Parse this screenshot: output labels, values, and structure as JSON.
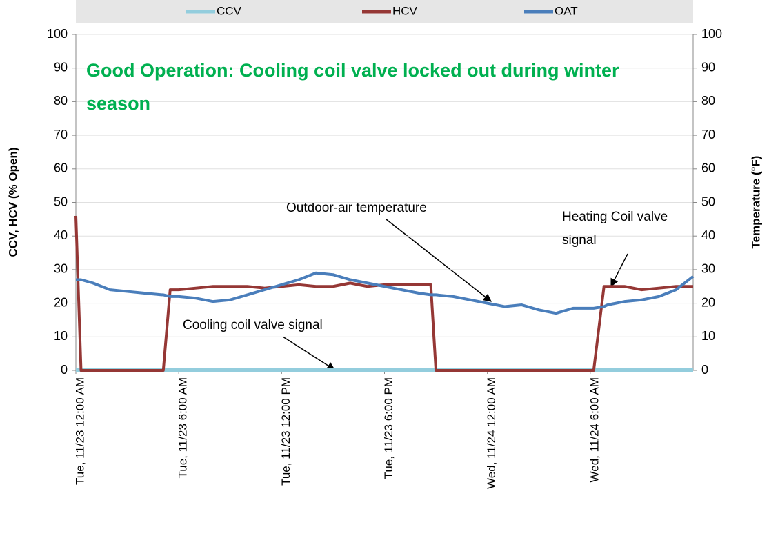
{
  "chart_data": {
    "type": "line",
    "title": "Good Operation: Cooling coil valve locked out during winter season",
    "y_label": "CCV, HCV (% Open)",
    "y2_label": "Temperature (°F)",
    "annotations": [
      "Outdoor-air temperature",
      "Heating Coil valve signal",
      "Cooling coil valve signal"
    ],
    "x": [
      0,
      0.3,
      1,
      2,
      3,
      4,
      5,
      5.1,
      5.5,
      6,
      7,
      8,
      9,
      10,
      11,
      12,
      13,
      14,
      15,
      16,
      17,
      18,
      19,
      20,
      20.7,
      21,
      22,
      23,
      24,
      25,
      26,
      27,
      28,
      29,
      30,
      30.2,
      30.8,
      31,
      32,
      33,
      34,
      35,
      36
    ],
    "xlim": [
      0,
      36
    ],
    "xticks": [
      {
        "value": 0,
        "label": "Tue, 11/23 12:00 AM"
      },
      {
        "value": 6,
        "label": "Tue, 11/23 6:00 AM"
      },
      {
        "value": 12,
        "label": "Tue, 11/23 12:00 PM"
      },
      {
        "value": 18,
        "label": "Tue, 11/23 6:00 PM"
      },
      {
        "value": 24,
        "label": "Wed, 11/24 12:00 AM"
      },
      {
        "value": 30,
        "label": "Wed, 11/24 6:00 AM"
      }
    ],
    "ylim": [
      0,
      100
    ],
    "yticks": [
      0,
      10,
      20,
      30,
      40,
      50,
      60,
      70,
      80,
      90,
      100
    ],
    "y2lim": [
      0,
      100
    ],
    "y2ticks": [
      0,
      10,
      20,
      30,
      40,
      50,
      60,
      70,
      80,
      90,
      100
    ],
    "grid": true,
    "legend": "top",
    "series": [
      {
        "name": "CCV",
        "color": "#93cddd",
        "values": [
          0,
          0,
          0,
          0,
          0,
          0,
          0,
          0,
          0,
          0,
          0,
          0,
          0,
          0,
          0,
          0,
          0,
          0,
          0,
          0,
          0,
          0,
          0,
          0,
          0,
          0,
          0,
          0,
          0,
          0,
          0,
          0,
          0,
          0,
          0,
          0,
          0,
          0,
          0,
          0,
          0,
          0,
          0
        ]
      },
      {
        "name": "HCV",
        "color": "#953735",
        "values": [
          46,
          0,
          0,
          0,
          0,
          0,
          0,
          0,
          24,
          24,
          24.5,
          25,
          25,
          25,
          24.5,
          25,
          25.5,
          25,
          25,
          26,
          25,
          25.5,
          25.5,
          25.5,
          25.5,
          0,
          0,
          0,
          0,
          0,
          0,
          0,
          0,
          0,
          0,
          0,
          25,
          25,
          25,
          24,
          24.5,
          25,
          25
        ]
      },
      {
        "name": "OAT",
        "color": "#4a7ebb",
        "axis": "y2",
        "values": [
          27,
          27,
          26,
          24,
          23.5,
          23,
          22.5,
          22.5,
          22,
          22,
          21.5,
          20.5,
          21,
          22.5,
          24,
          25.5,
          27,
          29,
          28.5,
          27,
          26,
          25,
          24,
          23,
          22.5,
          22.5,
          22,
          21,
          20,
          19,
          19.5,
          18,
          17,
          18.5,
          18.5,
          18.5,
          19,
          19.5,
          20.5,
          21,
          22,
          24,
          28
        ]
      }
    ]
  }
}
